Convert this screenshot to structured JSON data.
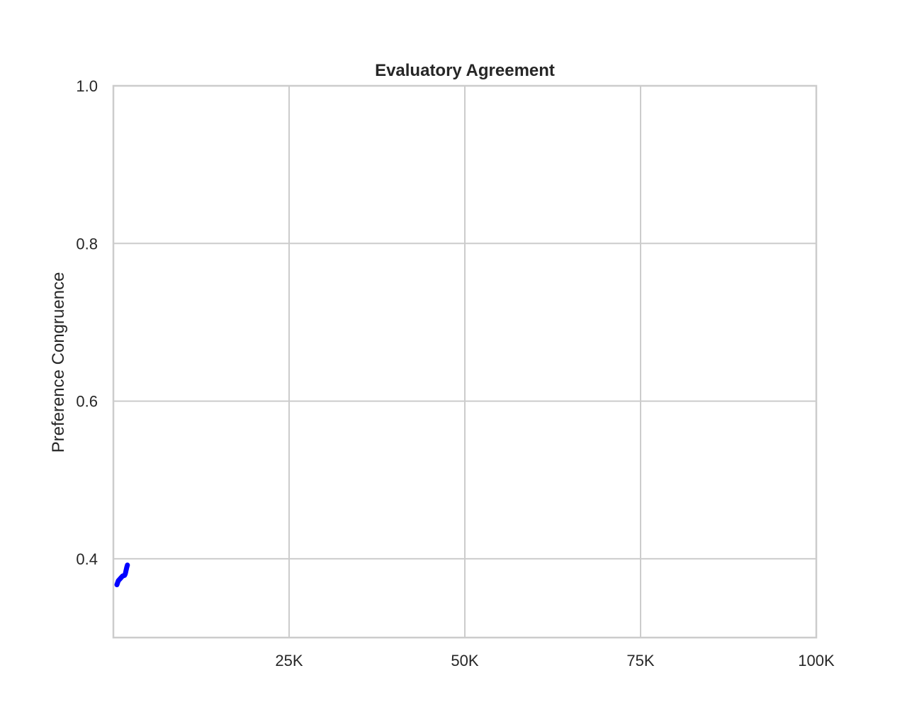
{
  "chart_data": {
    "type": "line",
    "title": "Evaluatory Agreement",
    "xlabel": "",
    "ylabel": "Preference Congruence",
    "xlim": [
      0,
      100000
    ],
    "ylim": [
      0.3,
      1.0
    ],
    "x_ticks": [
      {
        "value": 25000,
        "label": "25K"
      },
      {
        "value": 50000,
        "label": "50K"
      },
      {
        "value": 75000,
        "label": "75K"
      },
      {
        "value": 100000,
        "label": "100K"
      }
    ],
    "y_ticks": [
      {
        "value": 0.4,
        "label": "0.4"
      },
      {
        "value": 0.6,
        "label": "0.6"
      },
      {
        "value": 0.8,
        "label": "0.8"
      },
      {
        "value": 1.0,
        "label": "1.0"
      }
    ],
    "grid": true,
    "series": [
      {
        "color": "#0000ff",
        "x": [
          500,
          700,
          1000,
          1300,
          1600,
          1700,
          1800,
          1900,
          2000
        ],
        "y": [
          0.367,
          0.372,
          0.375,
          0.378,
          0.379,
          0.381,
          0.385,
          0.389,
          0.392
        ]
      }
    ]
  },
  "colors": {
    "spine": "#cccccc",
    "grid": "#cccccc",
    "text": "#262626",
    "background": "#ffffff"
  }
}
